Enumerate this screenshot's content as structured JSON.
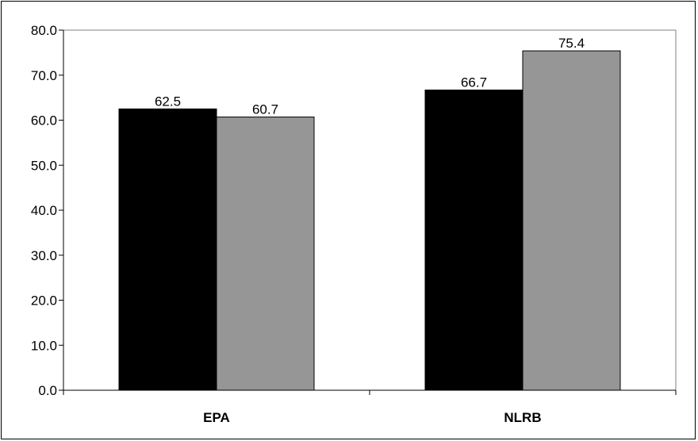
{
  "chart_data": {
    "type": "bar",
    "title": "",
    "xlabel": "",
    "ylabel": "",
    "categories": [
      "EPA",
      "NLRB"
    ],
    "series": [
      {
        "values": [
          62.5,
          66.7
        ],
        "color": "#000000"
      },
      {
        "values": [
          60.7,
          75.4
        ],
        "color": "#969696"
      }
    ],
    "ylim": [
      0,
      80
    ],
    "yticks": [
      0,
      10,
      20,
      30,
      40,
      50,
      60,
      70,
      80
    ],
    "ytick_labels": [
      "0.0",
      "10.0",
      "20.0",
      "30.0",
      "40.0",
      "50.0",
      "60.0",
      "70.0",
      "80.0"
    ],
    "data_labels": [
      [
        "62.5",
        "66.7"
      ],
      [
        "60.7",
        "75.4"
      ]
    ],
    "grid": false,
    "legend": "none"
  }
}
